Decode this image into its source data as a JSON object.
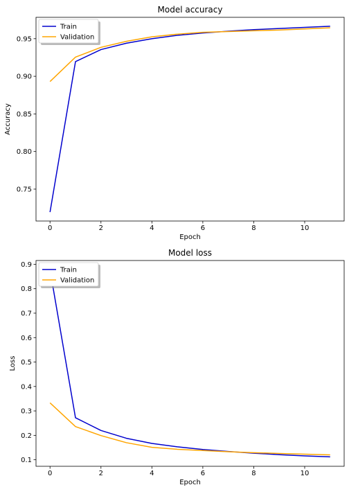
{
  "chart_data": [
    {
      "type": "line",
      "title": "Model accuracy",
      "xlabel": "Epoch",
      "ylabel": "Accuracy",
      "xlim": [
        -0.55,
        11.55
      ],
      "ylim": [
        0.7076,
        0.9784
      ],
      "xticks": [
        0,
        2,
        4,
        6,
        8,
        10
      ],
      "yticks": [
        0.75,
        0.8,
        0.85,
        0.9,
        0.95
      ],
      "ytick_labels": [
        "0.75",
        "0.80",
        "0.85",
        "0.90",
        "0.95"
      ],
      "grid": false,
      "legend": "upper-left",
      "x": [
        0,
        1,
        2,
        3,
        4,
        5,
        6,
        7,
        8,
        9,
        10,
        11
      ],
      "series": [
        {
          "name": "Train",
          "color": "#0000cd",
          "values": [
            0.7195,
            0.9195,
            0.9355,
            0.944,
            0.95,
            0.9545,
            0.9575,
            0.96,
            0.962,
            0.9635,
            0.965,
            0.9665
          ]
        },
        {
          "name": "Validation",
          "color": "#ffa500",
          "values": [
            0.893,
            0.9255,
            0.9385,
            0.9465,
            0.9525,
            0.956,
            0.9585,
            0.9595,
            0.9605,
            0.9615,
            0.963,
            0.9645
          ]
        }
      ]
    },
    {
      "type": "line",
      "title": "Model loss",
      "xlabel": "Epoch",
      "ylabel": "Loss",
      "xlim": [
        -0.55,
        11.55
      ],
      "ylim": [
        0.0734,
        0.9154
      ],
      "xticks": [
        0,
        2,
        4,
        6,
        8,
        10
      ],
      "yticks": [
        0.1,
        0.2,
        0.3,
        0.4,
        0.5,
        0.6,
        0.7,
        0.8,
        0.9
      ],
      "ytick_labels": [
        "0.1",
        "0.2",
        "0.3",
        "0.4",
        "0.5",
        "0.6",
        "0.7",
        "0.8",
        "0.9"
      ],
      "grid": false,
      "legend": "upper-left",
      "x": [
        0,
        1,
        2,
        3,
        4,
        5,
        6,
        7,
        8,
        9,
        10,
        11
      ],
      "series": [
        {
          "name": "Train",
          "color": "#0000cd",
          "values": [
            0.877,
            0.272,
            0.22,
            0.188,
            0.167,
            0.153,
            0.142,
            0.134,
            0.127,
            0.121,
            0.116,
            0.112
          ]
        },
        {
          "name": "Validation",
          "color": "#ffa500",
          "values": [
            0.333,
            0.236,
            0.199,
            0.17,
            0.151,
            0.143,
            0.138,
            0.133,
            0.129,
            0.126,
            0.123,
            0.12
          ]
        }
      ]
    }
  ]
}
